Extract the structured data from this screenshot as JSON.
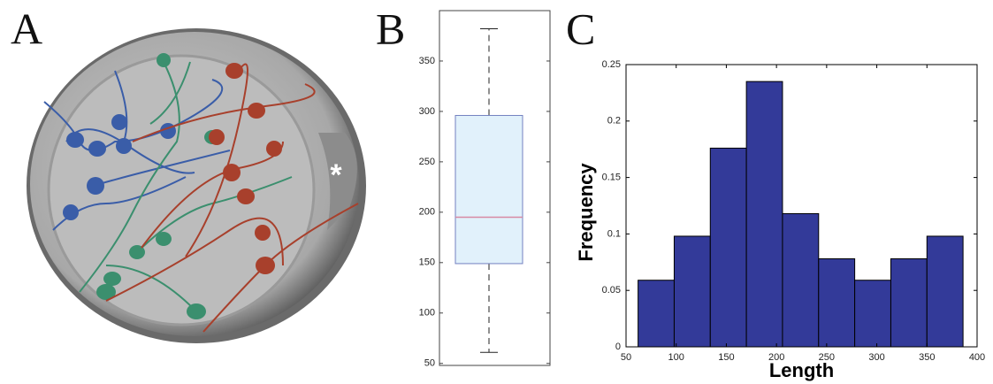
{
  "panel_labels": [
    "A",
    "B",
    "C"
  ],
  "annotation": "*",
  "chart_data": [
    {
      "type": "box",
      "min": 61,
      "q1": 149,
      "median": 195,
      "q3": 296,
      "max": 382,
      "ylim": [
        48,
        400
      ],
      "yticks": [
        50,
        100,
        150,
        200,
        250,
        300,
        350
      ],
      "color": "#e1f1fb",
      "edge_color": "#7381c0",
      "median_color": "#d88aa4"
    },
    {
      "type": "histogram",
      "xlabel": "Length",
      "ylabel": "Frequency",
      "bins": [
        62,
        98,
        134,
        170,
        206,
        242,
        278,
        314,
        350,
        386
      ],
      "values": [
        0.059,
        0.098,
        0.176,
        0.235,
        0.118,
        0.078,
        0.059,
        0.078,
        0.098
      ],
      "color": "#333a99",
      "xlim": [
        50,
        400
      ],
      "xticks": [
        50,
        100,
        150,
        200,
        250,
        300,
        350,
        400
      ],
      "ylim": [
        0,
        0.25
      ],
      "yticks": [
        0,
        0.05,
        0.1,
        0.15,
        0.2,
        0.25
      ]
    }
  ]
}
